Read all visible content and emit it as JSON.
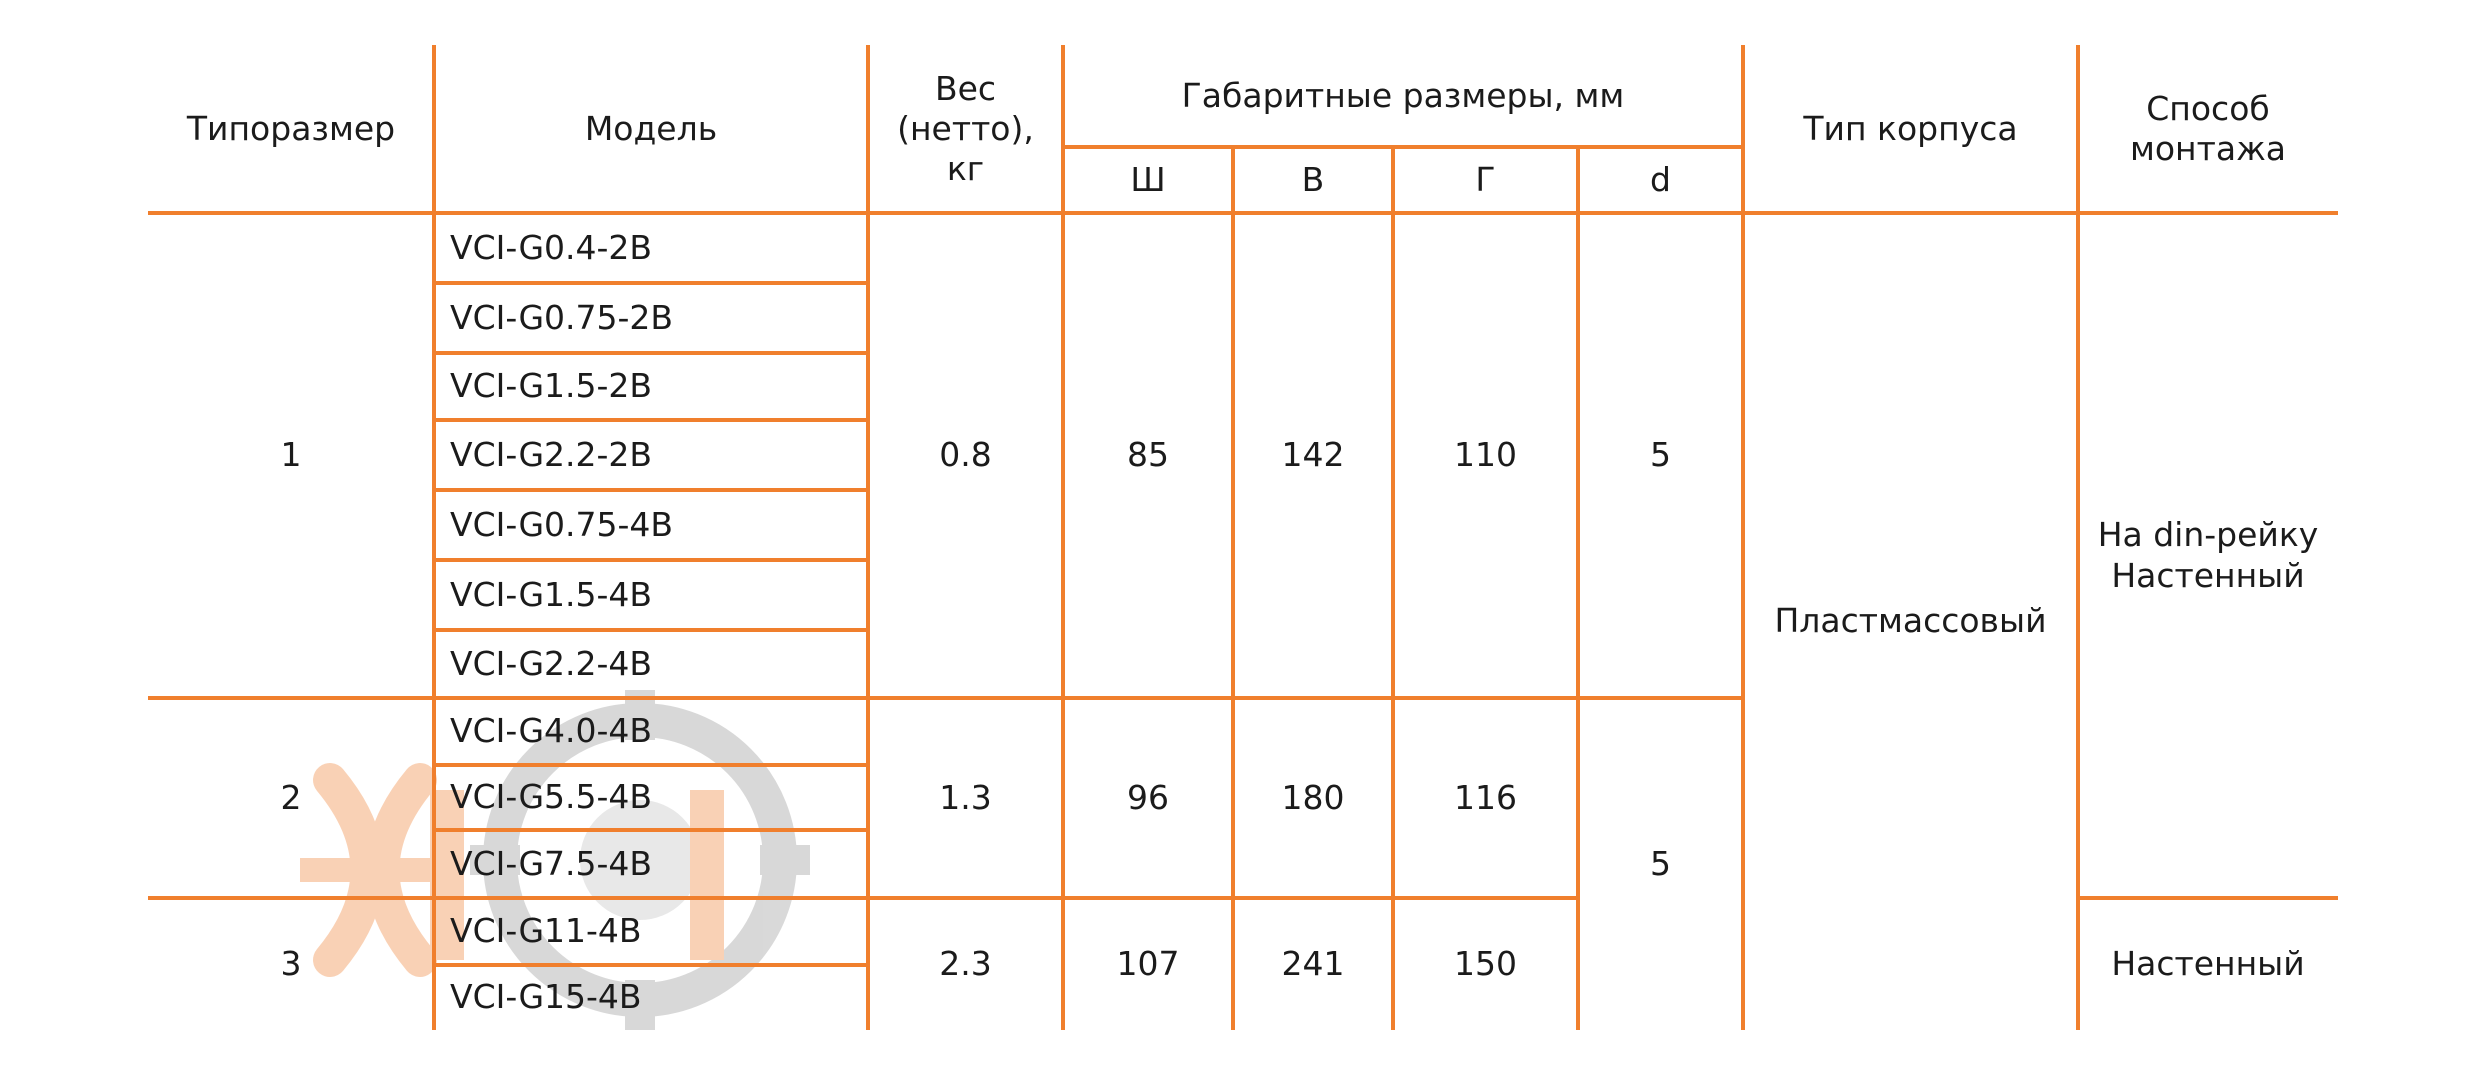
{
  "colors": {
    "rule": "#f07f2d",
    "text": "#1b1b1b",
    "watermark_logo": "#f5ad7a",
    "watermark_gear": "#b9b9b9"
  },
  "watermark": {
    "name": "company-logo-watermark"
  },
  "header": {
    "frame_size": "Типоразмер",
    "model": "Модель",
    "weight": "Вес\n(нетто),\nкг",
    "dimensions": "Габаритные размеры, мм",
    "w": "Ш",
    "h": "В",
    "d_depth": "Г",
    "d": "d",
    "housing": "Тип корпуса",
    "mounting": "Способ\nмонтажа"
  },
  "groups": [
    {
      "size": "1",
      "weight": "0.8",
      "w": "85",
      "h": "142",
      "depth": "110",
      "d": "5",
      "models": [
        "VCI-G0.4-2B",
        "VCI-G0.75-2B",
        "VCI-G1.5-2B",
        "VCI-G2.2-2B",
        "VCI-G0.75-4B",
        "VCI-G1.5-4B",
        "VCI-G2.2-4B"
      ]
    },
    {
      "size": "2",
      "weight": "1.3",
      "w": "96",
      "h": "180",
      "depth": "116",
      "models": [
        "VCI-G4.0-4B",
        "VCI-G5.5-4B",
        "VCI-G7.5-4B"
      ]
    },
    {
      "size": "3",
      "weight": "2.3",
      "w": "107",
      "h": "241",
      "depth": "150",
      "models": [
        "VCI-G11-4B",
        "VCI-G15-4B"
      ]
    }
  ],
  "d_groups_2_3": "5",
  "housing_all": "Пластмассовый",
  "mounting_groups_1_2": "На din-рейку\nНастенный",
  "mounting_group_3": "Настенный"
}
